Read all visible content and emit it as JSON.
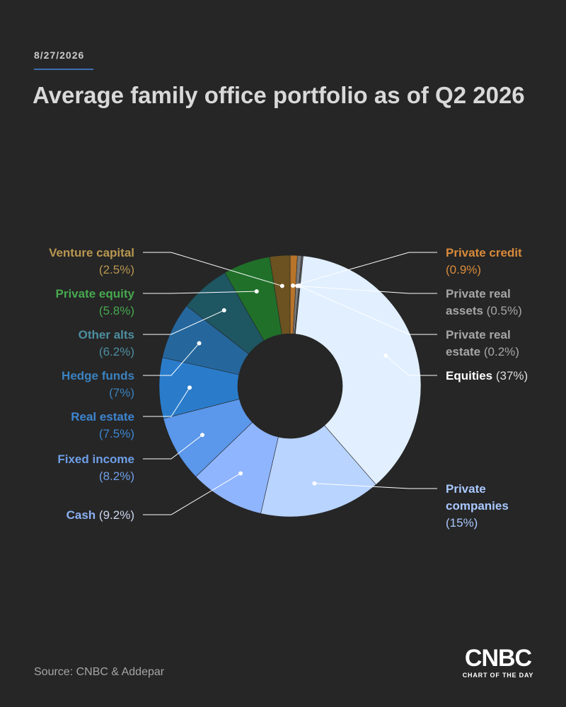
{
  "date": "8/27/2026",
  "title": "Average family office portfolio as of Q2 2026",
  "source": "Source: CNBC & Addepar",
  "logo": {
    "word": "CNBC",
    "sub": "CHART OF THE DAY"
  },
  "colors": {
    "background": "#262626",
    "title": "#d9d9d9",
    "date_rule": "#3b6fb0"
  },
  "chart_data": {
    "type": "pie",
    "donut": true,
    "title": "Average family office portfolio as of Q2 2026",
    "unit": "%",
    "slices": [
      {
        "label": "Private credit",
        "value": 0.9,
        "value_text": "(0.9%)",
        "color": "#b8742a",
        "label_color": "#d98a3a",
        "value_color": "#d98a3a",
        "side": "right",
        "label_lines": [
          "Private credit",
          "(0.9%)"
        ]
      },
      {
        "label": "Private real assets",
        "value": 0.5,
        "value_text": "(0.5%)",
        "color": "#7a7a7a",
        "label_color": "#a6a6a6",
        "value_color": "#a6a6a6",
        "side": "right",
        "label_lines": [
          "Private real",
          "assets (0.5%)"
        ]
      },
      {
        "label": "Private real estate",
        "value": 0.2,
        "value_text": "(0.2%)",
        "color": "#5a5a5a",
        "label_color": "#a6a6a6",
        "value_color": "#a6a6a6",
        "side": "right",
        "label_lines": [
          "Private real",
          "estate (0.2%)"
        ]
      },
      {
        "label": "Equities",
        "value": 37,
        "value_text": "(37%)",
        "color": "#e1efff",
        "label_color": "#ffffff",
        "value_color": "#dddddd",
        "side": "right",
        "label_lines": [
          "Equities (37%)"
        ]
      },
      {
        "label": "Private companies",
        "value": 15,
        "value_text": "(15%)",
        "color": "#b9d4ff",
        "label_color": "#a9c8ff",
        "value_color": "#a9c8ff",
        "side": "right",
        "label_lines": [
          "Private",
          "companies",
          "(15%)"
        ]
      },
      {
        "label": "Cash",
        "value": 9.2,
        "value_text": "(9.2%)",
        "color": "#8fb5ff",
        "label_color": "#8cb0f2",
        "value_color": "#c9d6ee",
        "side": "left",
        "label_lines": [
          "Cash (9.2%)"
        ]
      },
      {
        "label": "Fixed income",
        "value": 8.2,
        "value_text": "(8.2%)",
        "color": "#5b97ea",
        "label_color": "#6f9fe8",
        "value_color": "#6f9fe8",
        "side": "left",
        "label_lines": [
          "Fixed income",
          "(8.2%)"
        ]
      },
      {
        "label": "Real estate",
        "value": 7.5,
        "value_text": "(7.5%)",
        "color": "#2a7ccb",
        "label_color": "#3d85d1",
        "value_color": "#3d85d1",
        "side": "left",
        "label_lines": [
          "Real estate",
          "(7.5%)"
        ]
      },
      {
        "label": "Hedge funds",
        "value": 7,
        "value_text": "(7%)",
        "color": "#25679d",
        "label_color": "#3a82c0",
        "value_color": "#3a82c0",
        "side": "left",
        "label_lines": [
          "Hedge funds",
          "(7%)"
        ]
      },
      {
        "label": "Other alts",
        "value": 6.2,
        "value_text": "(6.2%)",
        "color": "#1e5662",
        "label_color": "#4d8ea0",
        "value_color": "#4d8ea0",
        "side": "left",
        "label_lines": [
          "Other alts",
          "(6.2%)"
        ]
      },
      {
        "label": "Private equity",
        "value": 5.8,
        "value_text": "(5.8%)",
        "color": "#20702a",
        "label_color": "#46a84f",
        "value_color": "#46a84f",
        "side": "left",
        "label_lines": [
          "Private equity",
          "(5.8%)"
        ]
      },
      {
        "label": "Venture capital",
        "value": 2.5,
        "value_text": "(2.5%)",
        "color": "#6b5220",
        "label_color": "#b89650",
        "value_color": "#b89650",
        "side": "left",
        "label_lines": [
          "Venture capital",
          "(2.5%)"
        ]
      }
    ],
    "legend": "callout labels around donut"
  }
}
